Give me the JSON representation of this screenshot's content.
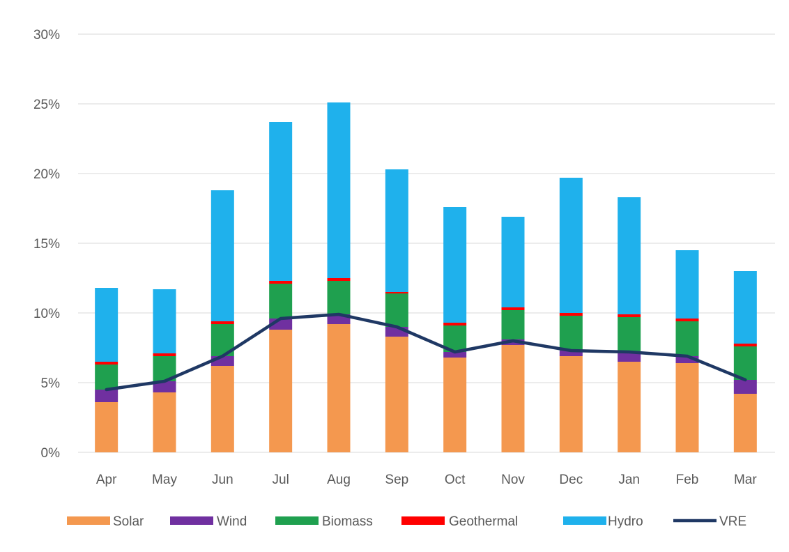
{
  "chart_data": {
    "type": "bar",
    "stacked": true,
    "categories": [
      "Apr",
      "May",
      "Jun",
      "Jul",
      "Aug",
      "Sep",
      "Oct",
      "Nov",
      "Dec",
      "Jan",
      "Feb",
      "Mar"
    ],
    "ylim": [
      0,
      30
    ],
    "yticks": [
      "0%",
      "5%",
      "10%",
      "15%",
      "20%",
      "25%",
      "30%"
    ],
    "grid": true,
    "legend_position": "bottom",
    "title": "",
    "xlabel": "",
    "ylabel": "",
    "series": [
      {
        "name": "Solar",
        "color": "#f4984f",
        "values": [
          3.6,
          4.3,
          6.2,
          8.8,
          9.2,
          8.3,
          6.8,
          7.7,
          6.9,
          6.5,
          6.4,
          4.2
        ]
      },
      {
        "name": "Wind",
        "color": "#7030a0",
        "values": [
          0.9,
          0.8,
          0.7,
          0.8,
          0.7,
          0.7,
          0.4,
          0.4,
          0.4,
          0.6,
          0.5,
          1.0
        ]
      },
      {
        "name": "Biomass",
        "color": "#1fa04f",
        "values": [
          1.8,
          1.8,
          2.3,
          2.5,
          2.4,
          2.4,
          1.9,
          2.1,
          2.5,
          2.6,
          2.5,
          2.4
        ]
      },
      {
        "name": "Geothermal",
        "color": "#ff0000",
        "values": [
          0.2,
          0.2,
          0.2,
          0.2,
          0.2,
          0.1,
          0.2,
          0.2,
          0.2,
          0.2,
          0.2,
          0.2
        ]
      },
      {
        "name": "Hydro",
        "color": "#1fb1ec",
        "values": [
          5.3,
          4.6,
          9.4,
          11.4,
          12.6,
          8.8,
          8.3,
          6.5,
          9.7,
          8.4,
          4.9,
          5.2
        ]
      }
    ],
    "line_series": {
      "name": "VRE",
      "color": "#1f3864",
      "values": [
        4.5,
        5.1,
        6.9,
        9.6,
        9.9,
        9.0,
        7.2,
        8.0,
        7.3,
        7.2,
        6.9,
        5.2
      ]
    }
  }
}
